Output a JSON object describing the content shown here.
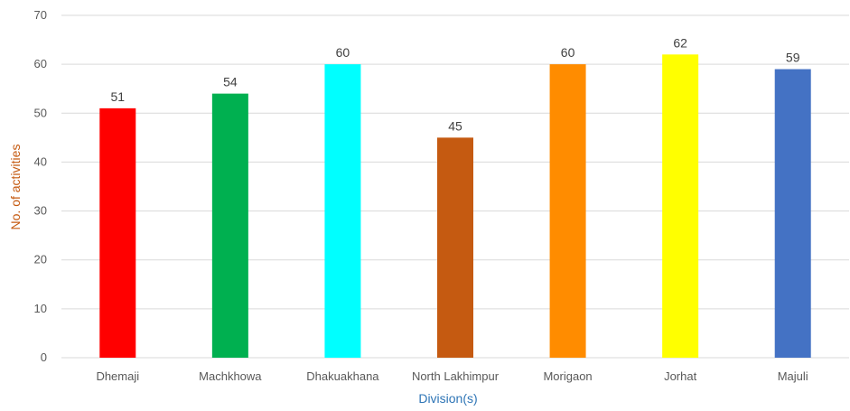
{
  "chart_data": {
    "type": "bar",
    "categories": [
      "Dhemaji",
      "Machkhowa",
      "Dhakuakhana",
      "North Lakhimpur",
      "Morigaon",
      "Jorhat",
      "Majuli"
    ],
    "values": [
      51,
      54,
      60,
      45,
      60,
      62,
      59
    ],
    "colors": [
      "#ff0000",
      "#00b050",
      "#00ffff",
      "#c55a11",
      "#ff8c00",
      "#ffff00",
      "#4472c4"
    ],
    "xlabel": "Division(s)",
    "ylabel": "No. of activities",
    "ylim": [
      0,
      70
    ],
    "yticks": [
      0,
      10,
      20,
      30,
      40,
      50,
      60,
      70
    ],
    "grid": true,
    "data_labels": true
  },
  "colors": {
    "axis_title_x": "#2e75b6",
    "axis_title_y": "#c55a11",
    "gridline": "#d9d9d9"
  }
}
